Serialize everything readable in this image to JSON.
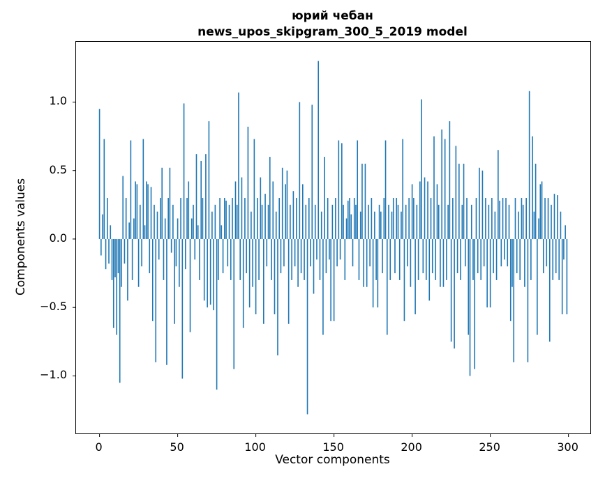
{
  "figure": {
    "background": "#ffffff"
  },
  "chart_data": {
    "type": "bar",
    "title_line1": "юрий чебан",
    "title_line2": "news_upos_skipgram_300_5_2019 model",
    "xlabel": "Vector components",
    "ylabel": "Components values",
    "bar_color": "#1f77b4",
    "spine_color": "#000000",
    "xlim": [
      -15,
      314
    ],
    "ylim": [
      -1.42,
      1.44
    ],
    "xtick_values": [
      0,
      50,
      100,
      150,
      200,
      250,
      300
    ],
    "xtick_labels": [
      "0",
      "50",
      "100",
      "150",
      "200",
      "250",
      "300"
    ],
    "ytick_values": [
      1.0,
      0.5,
      0.0,
      -0.5,
      -1.0
    ],
    "ytick_labels": [
      "1.0",
      "0.5",
      "0.0",
      "−0.5",
      "−1.0"
    ],
    "x_start": 0,
    "values": [
      0.95,
      -0.12,
      0.18,
      0.73,
      -0.22,
      0.3,
      -0.18,
      0.1,
      -0.3,
      -0.65,
      -0.28,
      -0.7,
      -0.25,
      -1.05,
      -0.35,
      0.46,
      -0.18,
      0.3,
      -0.45,
      0.12,
      0.72,
      -0.3,
      0.15,
      0.42,
      0.4,
      -0.35,
      0.25,
      -0.2,
      0.73,
      0.1,
      0.42,
      0.4,
      -0.25,
      0.38,
      -0.6,
      0.25,
      -0.9,
      0.2,
      -0.15,
      0.3,
      0.52,
      -0.3,
      0.15,
      -0.92,
      0.3,
      0.52,
      -0.1,
      0.25,
      -0.62,
      -0.2,
      0.15,
      -0.35,
      0.3,
      -1.02,
      0.99,
      -0.22,
      0.3,
      0.42,
      -0.68,
      0.15,
      0.25,
      -0.15,
      0.62,
      0.1,
      -0.3,
      0.57,
      0.3,
      -0.45,
      0.62,
      -0.5,
      0.86,
      -0.48,
      0.2,
      -0.52,
      0.25,
      -1.1,
      -0.3,
      0.3,
      0.1,
      -0.25,
      0.3,
      0.28,
      -0.2,
      0.25,
      -0.3,
      0.3,
      -0.95,
      0.42,
      0.25,
      1.07,
      -0.3,
      0.45,
      -0.65,
      0.3,
      -0.25,
      0.82,
      -0.5,
      0.2,
      -0.35,
      0.73,
      -0.55,
      0.3,
      -0.3,
      0.45,
      0.25,
      -0.62,
      0.33,
      -0.2,
      0.25,
      0.6,
      -0.3,
      0.42,
      -0.55,
      0.2,
      -0.85,
      0.3,
      -0.25,
      0.52,
      -0.2,
      0.4,
      0.5,
      -0.62,
      0.25,
      -0.3,
      0.35,
      -0.2,
      0.3,
      -0.35,
      1.0,
      -0.25,
      0.4,
      -0.3,
      0.25,
      -1.28,
      0.3,
      -0.2,
      0.98,
      -0.4,
      0.25,
      -0.15,
      1.3,
      -0.3,
      0.2,
      -0.7,
      0.6,
      -0.25,
      0.3,
      -0.15,
      -0.6,
      0.25,
      -0.6,
      0.3,
      -0.2,
      0.72,
      -0.15,
      0.7,
      0.25,
      -0.3,
      0.15,
      0.28,
      0.3,
      0.18,
      -0.2,
      0.3,
      0.25,
      0.72,
      -0.3,
      0.2,
      0.55,
      -0.35,
      0.55,
      -0.35,
      0.25,
      -0.2,
      0.3,
      -0.5,
      0.2,
      -0.3,
      -0.5,
      0.25,
      0.2,
      -0.25,
      0.3,
      0.72,
      -0.7,
      0.25,
      -0.3,
      0.2,
      0.3,
      -0.25,
      0.3,
      0.25,
      -0.3,
      0.2,
      0.73,
      -0.6,
      0.25,
      -0.2,
      0.3,
      -0.35,
      0.4,
      0.3,
      -0.55,
      0.25,
      -0.3,
      0.42,
      1.02,
      -0.25,
      0.45,
      -0.3,
      0.42,
      -0.45,
      0.3,
      -0.25,
      0.75,
      -0.3,
      0.4,
      0.25,
      -0.35,
      0.8,
      -0.35,
      0.73,
      -0.3,
      0.25,
      0.86,
      -0.75,
      0.3,
      -0.8,
      0.68,
      -0.25,
      0.55,
      -0.3,
      0.25,
      0.55,
      -0.2,
      0.3,
      -0.7,
      -1.0,
      0.25,
      -0.3,
      -0.95,
      0.3,
      -0.25,
      0.52,
      -0.3,
      0.5,
      -0.2,
      0.3,
      -0.5,
      0.25,
      -0.5,
      0.3,
      -0.25,
      0.2,
      -0.3,
      0.65,
      0.28,
      -0.2,
      0.3,
      -0.15,
      0.3,
      -0.2,
      0.25,
      -0.6,
      -0.35,
      -0.9,
      0.3,
      -0.25,
      0.2,
      -0.3,
      0.3,
      0.25,
      -0.35,
      0.3,
      -0.9,
      1.08,
      -0.3,
      0.75,
      0.2,
      0.55,
      -0.7,
      0.15,
      0.4,
      0.42,
      -0.25,
      0.3,
      -0.2,
      0.3,
      -0.75,
      0.25,
      -0.3,
      0.33,
      -0.25,
      0.32,
      -0.3,
      0.2,
      -0.55,
      -0.15,
      0.1,
      -0.55
    ]
  }
}
